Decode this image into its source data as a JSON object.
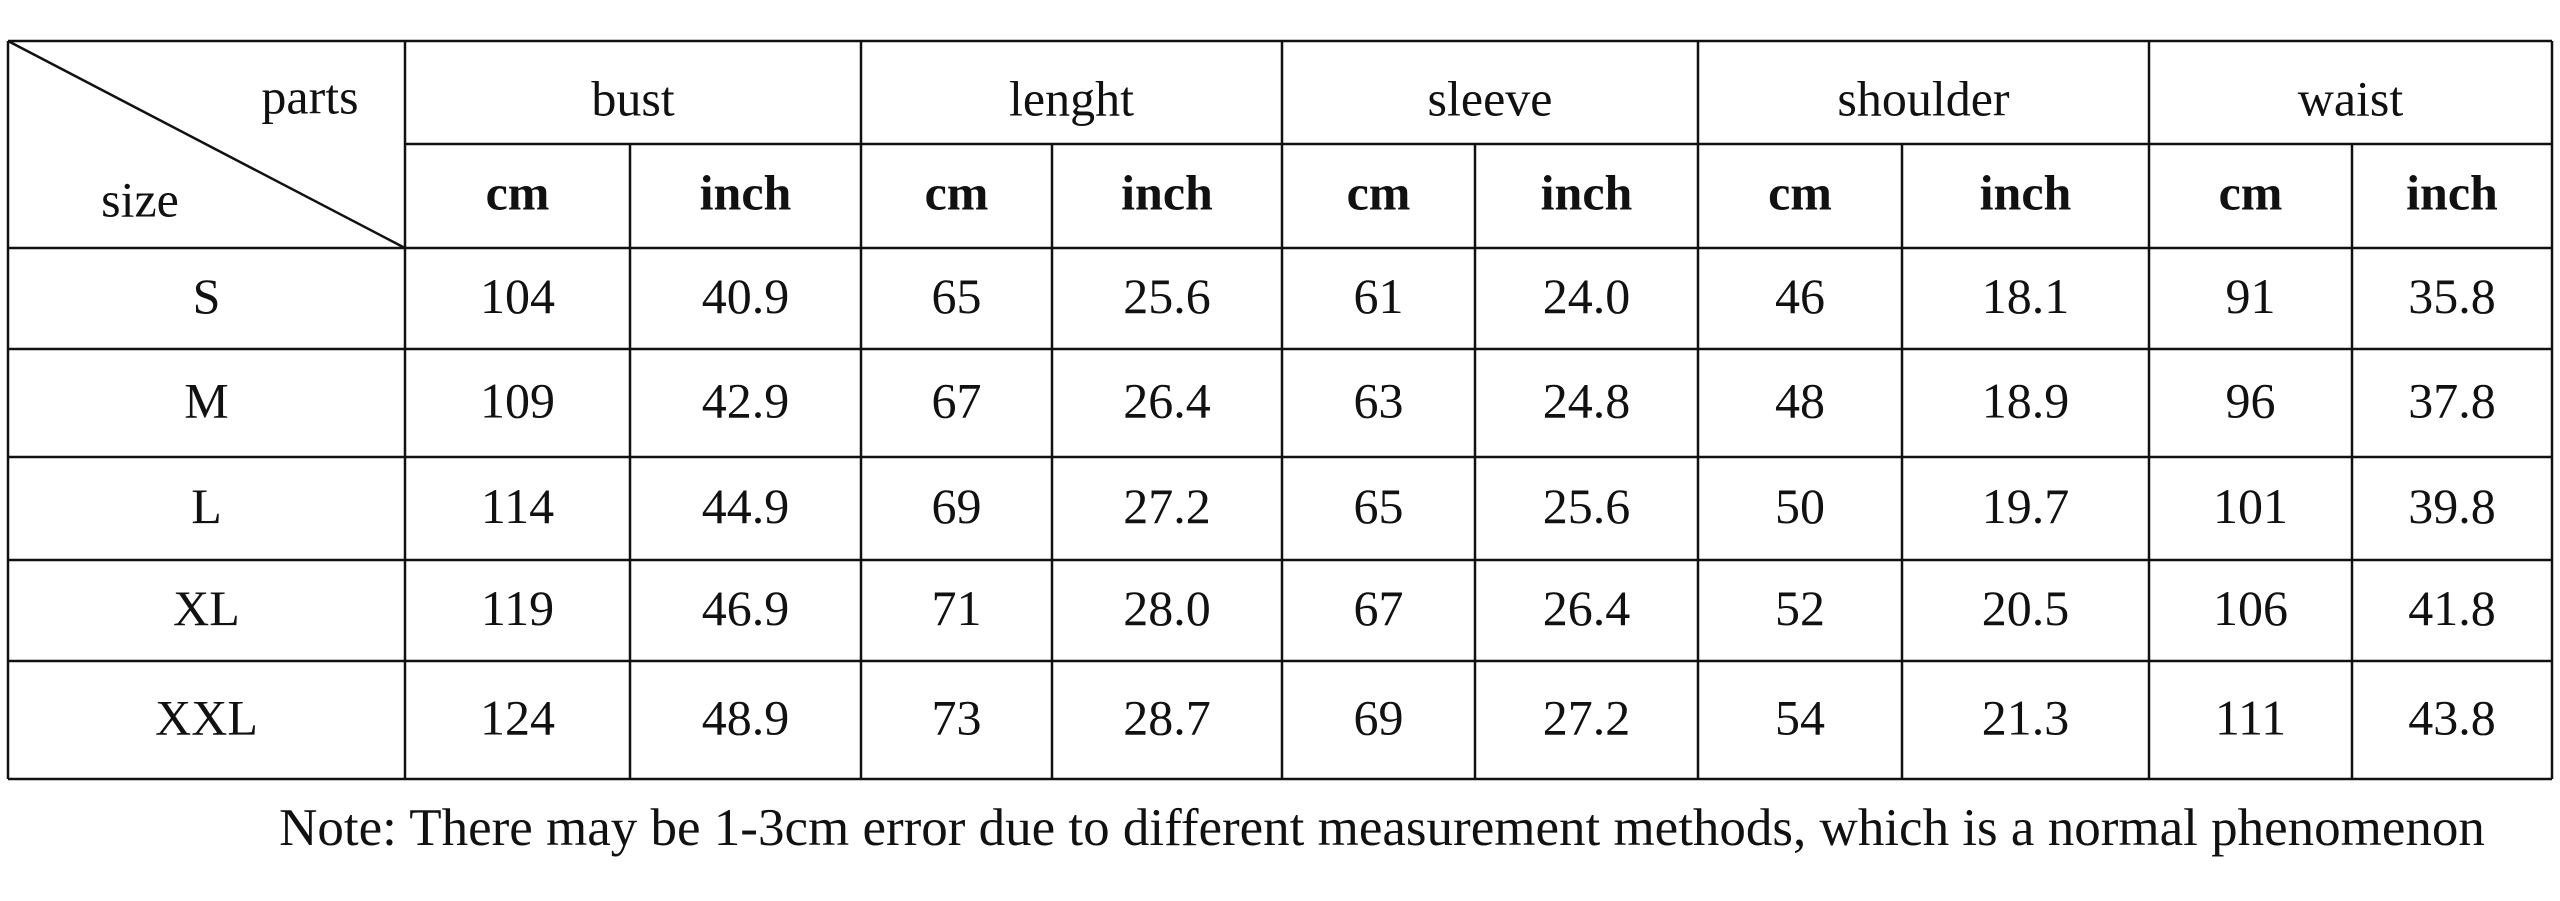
{
  "table": {
    "corner": {
      "top": "parts",
      "bottom": "size"
    },
    "parts": [
      "bust",
      "lenght",
      "sleeve",
      "shoulder",
      "waist"
    ],
    "units": [
      "cm",
      "inch",
      "cm",
      "inch",
      "cm",
      "inch",
      "cm",
      "inch",
      "cm",
      "inch"
    ],
    "rows": [
      [
        "S",
        "104",
        "40.9",
        "65",
        "25.6",
        "61",
        "24.0",
        "46",
        "18.1",
        "91",
        "35.8"
      ],
      [
        "M",
        "109",
        "42.9",
        "67",
        "26.4",
        "63",
        "24.8",
        "48",
        "18.9",
        "96",
        "37.8"
      ],
      [
        "L",
        "114",
        "44.9",
        "69",
        "27.2",
        "65",
        "25.6",
        "50",
        "19.7",
        "101",
        "39.8"
      ],
      [
        "XL",
        "119",
        "46.9",
        "71",
        "28.0",
        "67",
        "26.4",
        "52",
        "20.5",
        "106",
        "41.8"
      ],
      [
        "XXL",
        "124",
        "48.9",
        "73",
        "28.7",
        "69",
        "27.2",
        "54",
        "21.3",
        "111",
        "43.8"
      ]
    ]
  },
  "note": "Note: There may be 1-3cm error due to different measurement methods, which is a normal phenomenon"
}
